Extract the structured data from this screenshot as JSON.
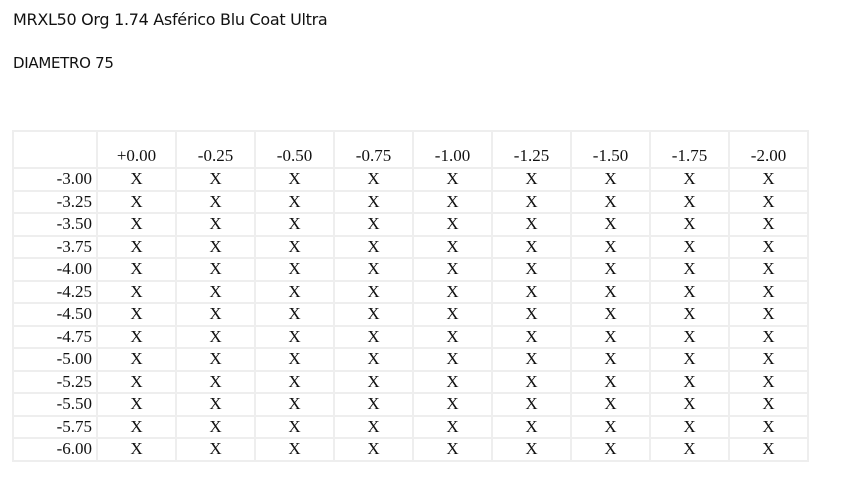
{
  "title": "MRXL50 Org 1.74 Asférico Blu Coat Ultra",
  "subtitle": "DIAMETRO 75",
  "table": {
    "columns": [
      "+0.00",
      "-0.25",
      "-0.50",
      "-0.75",
      "-1.00",
      "-1.25",
      "-1.50",
      "-1.75",
      "-2.00"
    ],
    "rows": [
      {
        "label": "-3.00",
        "cells": [
          "X",
          "X",
          "X",
          "X",
          "X",
          "X",
          "X",
          "X",
          "X"
        ]
      },
      {
        "label": "-3.25",
        "cells": [
          "X",
          "X",
          "X",
          "X",
          "X",
          "X",
          "X",
          "X",
          "X"
        ]
      },
      {
        "label": "-3.50",
        "cells": [
          "X",
          "X",
          "X",
          "X",
          "X",
          "X",
          "X",
          "X",
          "X"
        ]
      },
      {
        "label": "-3.75",
        "cells": [
          "X",
          "X",
          "X",
          "X",
          "X",
          "X",
          "X",
          "X",
          "X"
        ]
      },
      {
        "label": "-4.00",
        "cells": [
          "X",
          "X",
          "X",
          "X",
          "X",
          "X",
          "X",
          "X",
          "X"
        ]
      },
      {
        "label": "-4.25",
        "cells": [
          "X",
          "X",
          "X",
          "X",
          "X",
          "X",
          "X",
          "X",
          "X"
        ]
      },
      {
        "label": "-4.50",
        "cells": [
          "X",
          "X",
          "X",
          "X",
          "X",
          "X",
          "X",
          "X",
          "X"
        ]
      },
      {
        "label": "-4.75",
        "cells": [
          "X",
          "X",
          "X",
          "X",
          "X",
          "X",
          "X",
          "X",
          "X"
        ]
      },
      {
        "label": "-5.00",
        "cells": [
          "X",
          "X",
          "X",
          "X",
          "X",
          "X",
          "X",
          "X",
          "X"
        ]
      },
      {
        "label": "-5.25",
        "cells": [
          "X",
          "X",
          "X",
          "X",
          "X",
          "X",
          "X",
          "X",
          "X"
        ]
      },
      {
        "label": "-5.50",
        "cells": [
          "X",
          "X",
          "X",
          "X",
          "X",
          "X",
          "X",
          "X",
          "X"
        ]
      },
      {
        "label": "-5.75",
        "cells": [
          "X",
          "X",
          "X",
          "X",
          "X",
          "X",
          "X",
          "X",
          "X"
        ]
      },
      {
        "label": "-6.00",
        "cells": [
          "X",
          "X",
          "X",
          "X",
          "X",
          "X",
          "X",
          "X",
          "X"
        ]
      }
    ]
  }
}
